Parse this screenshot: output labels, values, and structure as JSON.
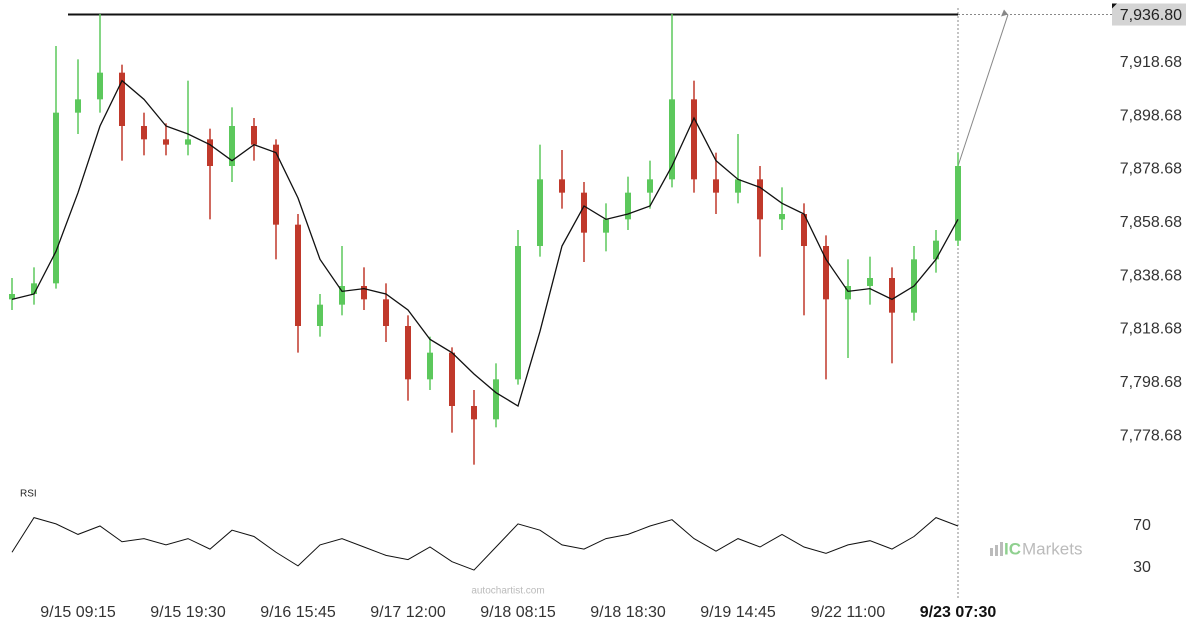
{
  "chart_data": {
    "type": "candlestick",
    "categories": [
      null,
      null,
      null,
      "9/15 09:15",
      null,
      null,
      null,
      null,
      "9/15 19:30",
      null,
      null,
      null,
      null,
      "9/16 15:45",
      null,
      null,
      null,
      null,
      "9/17 12:00",
      null,
      null,
      null,
      null,
      "9/18 08:15",
      null,
      null,
      null,
      null,
      "9/18 18:30",
      null,
      null,
      null,
      null,
      "9/19 14:45",
      null,
      null,
      null,
      null,
      "9/22 11:00",
      null,
      null,
      null,
      null,
      "9/23 07:30"
    ],
    "open": [
      7830,
      7832,
      7836,
      7900,
      7905,
      7915,
      7895,
      7890,
      7888,
      7890,
      7880,
      7895,
      7888,
      7858,
      7820,
      7828,
      7835,
      7830,
      7820,
      7800,
      7810,
      7790,
      7785,
      7800,
      7850,
      7875,
      7870,
      7855,
      7860,
      7870,
      7875,
      7905,
      7875,
      7870,
      7875,
      7860,
      7862,
      7850,
      7830,
      7835,
      7838,
      7825,
      7845,
      7852
    ],
    "high": [
      7838,
      7842,
      7925,
      7920,
      7937,
      7918,
      7900,
      7896,
      7912,
      7894,
      7902,
      7898,
      7890,
      7862,
      7832,
      7850,
      7842,
      7836,
      7824,
      7816,
      7812,
      7796,
      7806,
      7856,
      7888,
      7886,
      7874,
      7866,
      7876,
      7882,
      7937,
      7912,
      7885,
      7892,
      7880,
      7872,
      7866,
      7854,
      7845,
      7846,
      7842,
      7850,
      7856,
      7885
    ],
    "low": [
      7826,
      7828,
      7834,
      7892,
      7900,
      7882,
      7884,
      7884,
      7884,
      7860,
      7874,
      7882,
      7845,
      7810,
      7816,
      7824,
      7826,
      7814,
      7792,
      7796,
      7780,
      7768,
      7782,
      7798,
      7846,
      7864,
      7844,
      7848,
      7856,
      7864,
      7872,
      7870,
      7862,
      7866,
      7846,
      7856,
      7824,
      7800,
      7808,
      7828,
      7806,
      7822,
      7840,
      7850
    ],
    "close": [
      7832,
      7836,
      7900,
      7905,
      7915,
      7895,
      7890,
      7888,
      7890,
      7880,
      7895,
      7888,
      7858,
      7820,
      7828,
      7835,
      7830,
      7820,
      7800,
      7810,
      7790,
      7785,
      7800,
      7850,
      7875,
      7870,
      7855,
      7860,
      7870,
      7875,
      7905,
      7875,
      7870,
      7875,
      7860,
      7862,
      7850,
      7830,
      7835,
      7838,
      7825,
      7845,
      7852,
      7880
    ],
    "ma": [
      7830,
      7832,
      7848,
      7870,
      7895,
      7912,
      7905,
      7895,
      7892,
      7888,
      7882,
      7888,
      7885,
      7868,
      7845,
      7833,
      7834,
      7832,
      7826,
      7815,
      7810,
      7802,
      7795,
      7790,
      7818,
      7850,
      7865,
      7860,
      7862,
      7865,
      7880,
      7898,
      7882,
      7875,
      7872,
      7866,
      7862,
      7845,
      7833,
      7834,
      7830,
      7835,
      7845,
      7860
    ],
    "up_color": "#5cc85c",
    "down_color": "#c0392b",
    "ma_color": "#111111",
    "ylim": [
      7760,
      7940
    ],
    "yticks": [
      {
        "value": 7778.68,
        "label": "7,778.68"
      },
      {
        "value": 7798.68,
        "label": "7,798.68"
      },
      {
        "value": 7818.68,
        "label": "7,818.68"
      },
      {
        "value": 7838.68,
        "label": "7,838.68"
      },
      {
        "value": 7858.68,
        "label": "7,858.68"
      },
      {
        "value": 7878.68,
        "label": "7,878.68"
      },
      {
        "value": 7898.68,
        "label": "7,898.68"
      },
      {
        "value": 7918.68,
        "label": "7,918.68"
      }
    ],
    "level": {
      "value": 7936.8,
      "label": "7,936.80"
    },
    "rsi": {
      "title": "RSI",
      "values": [
        45,
        78,
        72,
        62,
        70,
        55,
        58,
        52,
        58,
        48,
        66,
        60,
        45,
        32,
        52,
        58,
        50,
        42,
        38,
        50,
        36,
        28,
        50,
        72,
        66,
        52,
        48,
        58,
        62,
        70,
        76,
        58,
        46,
        58,
        50,
        62,
        50,
        44,
        52,
        56,
        48,
        60,
        78,
        70
      ],
      "ylim": [
        10,
        90
      ],
      "yticks": [
        30,
        70
      ]
    },
    "watermark": "autochartist.com",
    "logo": [
      "IC",
      "Markets"
    ]
  }
}
